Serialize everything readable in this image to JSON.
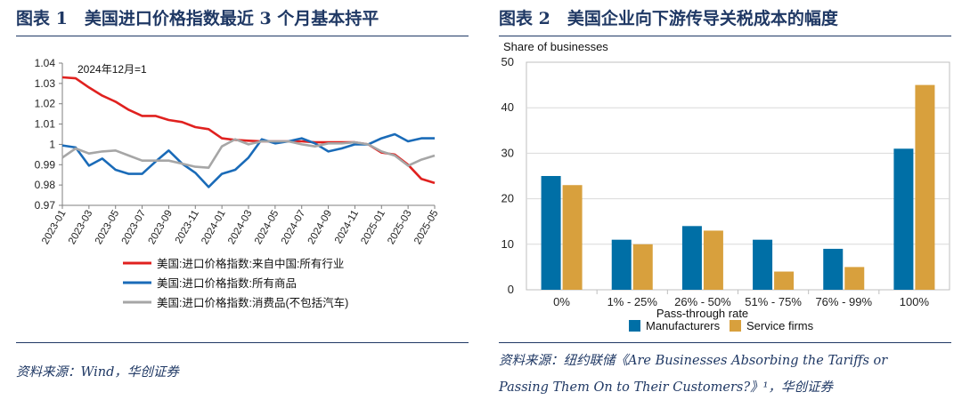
{
  "figure1": {
    "title": "图表 1　美国进口价格指数最近 3 个月基本持平",
    "source": "资料来源：Wind，华创证券",
    "chart_data": {
      "type": "line",
      "annotation": "2024年12月=1",
      "ylim": [
        0.97,
        1.04
      ],
      "yticks": [
        "0.97",
        "0.98",
        "0.99",
        "1",
        "1.01",
        "1.02",
        "1.03",
        "1.04"
      ],
      "ytick_values": [
        0.97,
        0.98,
        0.99,
        1.0,
        1.01,
        1.02,
        1.03,
        1.04
      ],
      "xticks": [
        "2023-01",
        "2023-03",
        "2023-05",
        "2023-07",
        "2023-09",
        "2023-11",
        "2024-01",
        "2024-03",
        "2024-05",
        "2024-07",
        "2024-09",
        "2024-11",
        "2025-01",
        "2025-03",
        "2025-05"
      ],
      "x": [
        "2023-01",
        "2023-02",
        "2023-03",
        "2023-04",
        "2023-05",
        "2023-06",
        "2023-07",
        "2023-08",
        "2023-09",
        "2023-10",
        "2023-11",
        "2023-12",
        "2024-01",
        "2024-02",
        "2024-03",
        "2024-04",
        "2024-05",
        "2024-06",
        "2024-07",
        "2024-08",
        "2024-09",
        "2024-10",
        "2024-11",
        "2024-12",
        "2025-01",
        "2025-02",
        "2025-03",
        "2025-04",
        "2025-05"
      ],
      "series": [
        {
          "name": "美国:进口价格指数:来自中国:所有行业",
          "color": "#e0211f",
          "values": [
            1.033,
            1.0325,
            1.028,
            1.024,
            1.021,
            1.017,
            1.014,
            1.014,
            1.012,
            1.011,
            1.0085,
            1.0075,
            1.003,
            1.0022,
            1.0018,
            1.0015,
            1.0015,
            1.0015,
            1.0015,
            1.001,
            1.001,
            1.001,
            1.001,
            1.0,
            0.996,
            0.995,
            0.99,
            0.983,
            0.981
          ]
        },
        {
          "name": "美国:进口价格指数:所有商品",
          "color": "#1a6bb8",
          "values": [
            0.9995,
            0.9985,
            0.9895,
            0.993,
            0.9875,
            0.9855,
            0.9855,
            0.9915,
            0.997,
            0.9905,
            0.986,
            0.979,
            0.9855,
            0.9875,
            0.9935,
            1.0025,
            1.0005,
            1.0015,
            1.003,
            1.0005,
            0.9965,
            0.998,
            1.0,
            1.0,
            1.003,
            1.005,
            1.0015,
            1.003,
            1.003
          ]
        },
        {
          "name": "美国:进口价格指数:消费品(不包括汽车)",
          "color": "#a6a6a6",
          "values": [
            0.9935,
            0.998,
            0.9955,
            0.9965,
            0.997,
            0.9945,
            0.992,
            0.992,
            0.992,
            0.9905,
            0.989,
            0.9885,
            0.999,
            1.0025,
            1.0,
            1.0015,
            1.0015,
            1.0015,
            1.0,
            0.999,
            1.0005,
            1.0005,
            1.001,
            1.0,
            0.9965,
            0.9945,
            0.9895,
            0.9925,
            0.9945
          ]
        }
      ]
    }
  },
  "figure2": {
    "title": "图表 2　美国企业向下游传导关税成本的幅度",
    "source_line1": "资料来源：纽约联储《Are Businesses Absorbing the Tariffs or",
    "source_line2": "Passing Them On to Their Customers?》¹，华创证券",
    "chart_data": {
      "type": "bar",
      "ylabel": "Share of businesses",
      "xlabel": "Pass-through rate",
      "ylim": [
        0,
        50
      ],
      "yticks": [
        "0",
        "10",
        "20",
        "30",
        "40",
        "50"
      ],
      "ytick_values": [
        0,
        10,
        20,
        30,
        40,
        50
      ],
      "categories": [
        "0%",
        "1% - 25%",
        "26% - 50%",
        "51% - 75%",
        "76% - 99%",
        "100%"
      ],
      "series": [
        {
          "name": "Manufacturers",
          "color": "#006fa6",
          "values": [
            25,
            11,
            14,
            11,
            9,
            31
          ]
        },
        {
          "name": "Service firms",
          "color": "#d8a03d",
          "values": [
            23,
            10,
            13,
            4,
            5,
            45
          ]
        }
      ]
    }
  }
}
